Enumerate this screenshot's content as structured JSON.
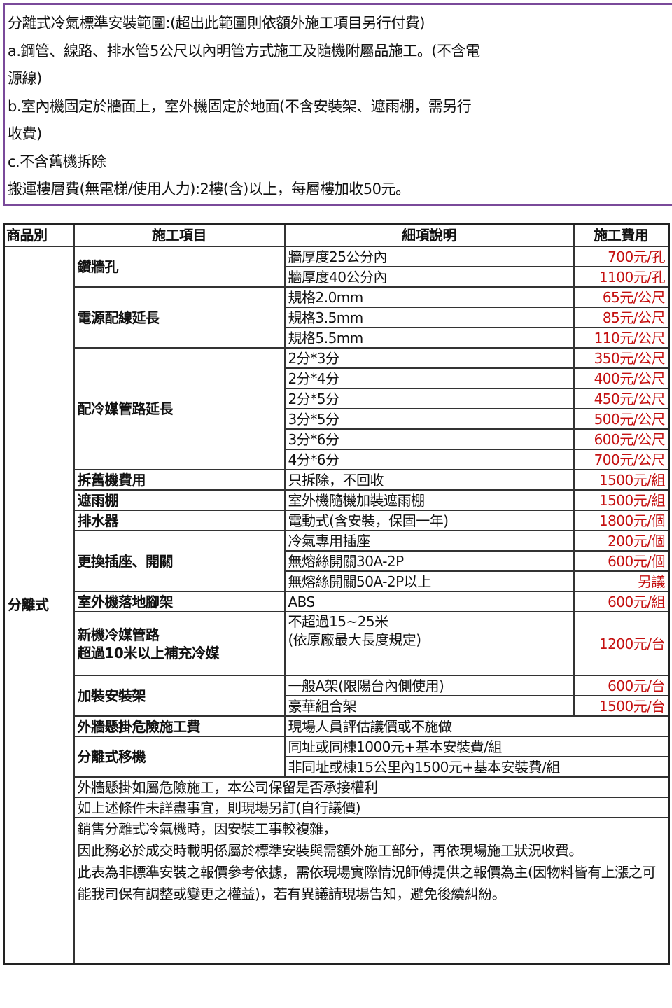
{
  "scope": {
    "title": "分離式冷氣標準安裝範圍:(超出此範圍則依額外施工項目另行付費)",
    "line_a1": "a.鋼管、線路、排水管5公尺以內明管方式施工及隨機附屬品施工。(不含電",
    "line_a2": "源線)",
    "line_b1": "b.室內機固定於牆面上，室外機固定於地面(不含安裝架、遮雨棚，需另行",
    "line_b2": "收費)",
    "line_c": "c.不含舊機拆除",
    "line_d": "搬運樓層費(無電梯/使用人力):2樓(含)以上，每層樓加收50元。"
  },
  "table": {
    "headers": [
      "商品別",
      "施工項目",
      "細項說明",
      "施工費用"
    ],
    "category": "分離式",
    "groups": [
      {
        "item": "鑽牆孔",
        "rows": [
          [
            "牆厚度25公分內",
            "700元/孔"
          ],
          [
            "牆厚度40公分內",
            "1100元/孔"
          ]
        ]
      },
      {
        "item": "電源配線延長",
        "rows": [
          [
            "規格2.0mm",
            "65元/公尺"
          ],
          [
            "規格3.5mm",
            "85元/公尺"
          ],
          [
            "規格5.5mm",
            "110元/公尺"
          ]
        ]
      },
      {
        "item": "配冷媒管路延長",
        "rows": [
          [
            "2分*3分",
            "350元/公尺"
          ],
          [
            "2分*4分",
            "400元/公尺"
          ],
          [
            "2分*5分",
            "450元/公尺"
          ],
          [
            "3分*5分",
            "500元/公尺"
          ],
          [
            "3分*6分",
            "600元/公尺"
          ],
          [
            "4分*6分",
            "700元/公尺"
          ]
        ]
      },
      {
        "item": "拆舊機費用",
        "rows": [
          [
            "只拆除，不回收",
            "1500元/組"
          ]
        ]
      },
      {
        "item": "遮雨棚",
        "rows": [
          [
            "室外機隨機加裝遮雨棚",
            "1500元/組"
          ]
        ]
      },
      {
        "item": "排水器",
        "rows": [
          [
            "電動式(含安裝，保固一年)",
            "1800元/個"
          ]
        ]
      },
      {
        "item": "更換插座、開關",
        "rows": [
          [
            "冷氣專用插座",
            "200元/個"
          ],
          [
            "無熔絲開關30A-2P",
            "600元/個"
          ],
          [
            "無熔絲開關50A-2P以上",
            "另議"
          ]
        ]
      },
      {
        "item": "室外機落地腳架",
        "rows": [
          [
            "ABS",
            "600元/組"
          ]
        ]
      },
      {
        "item_line1": "新機冷媒管路",
        "item_line2": "超過10米以上補充冷媒",
        "detail_line1": "不超過15~25米",
        "detail_line2": "(依原廠最大長度規定)",
        "fee": "1200元/台"
      },
      {
        "item": "加裝安裝架",
        "rows": [
          [
            "一般A架(限陽台內側使用)",
            "600元/台"
          ],
          [
            "豪華組合架",
            "1500元/台"
          ]
        ]
      },
      {
        "item": "外牆懸掛危險施工費",
        "detail": "現場人員評估議價或不施做"
      },
      {
        "item": "分離式移機",
        "details": [
          "同址或同棟1000元+基本安裝費/組",
          "非同址或棟15公里內1500元+基本安裝費/組"
        ]
      }
    ],
    "notes": [
      "外牆懸掛如屬危險施工，本公司保留是否承接權利",
      "如上述條件未詳盡事宜，則現場另訂(自行議價)"
    ],
    "final_note": [
      "銷售分離式冷氣機時，因安裝工事較複雜，",
      "因此務必於成交時載明係屬於標準安裝與需額外施工部分，再依現場施工狀況收費。",
      "此表為非標準安裝之報價參考依據，需依現場實際情況師傅提供之報價為主(因物料皆有上漲之可能我司保有調整或變更之權益)，若有異議請現場告知，避免後續糾紛。"
    ]
  },
  "colors": {
    "scope_border": "#7a4a9a",
    "fee_text": "#c41010"
  }
}
